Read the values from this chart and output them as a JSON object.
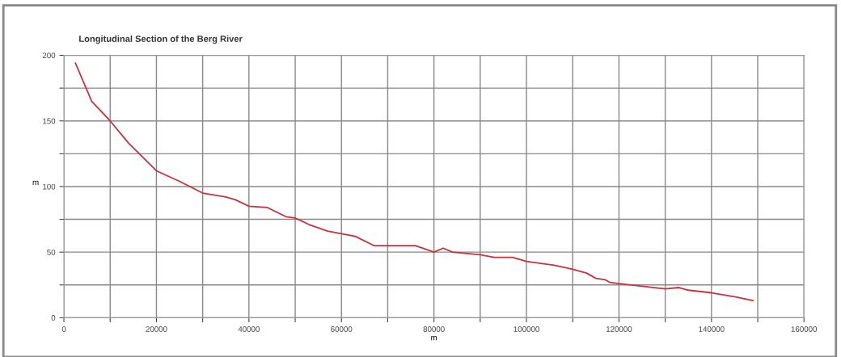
{
  "chart_data": {
    "type": "line",
    "title": "Longitudinal Section of the Berg River",
    "xlabel": "m",
    "ylabel": "m",
    "x": [
      2500,
      6000,
      10000,
      14000,
      20000,
      25000,
      30000,
      35000,
      37000,
      40000,
      44000,
      48000,
      50000,
      53000,
      57000,
      60000,
      63000,
      67000,
      70000,
      76000,
      80000,
      82000,
      84000,
      90000,
      93000,
      97000,
      100000,
      106000,
      110000,
      113000,
      115000,
      117000,
      118000,
      120000,
      125000,
      130000,
      133000,
      135000,
      140000,
      145000,
      149000
    ],
    "series": [
      {
        "color": "#c8323c",
        "values": [
          194,
          165,
          150,
          133,
          112,
          104,
          95,
          92,
          90,
          85,
          84,
          77,
          76,
          71,
          66,
          64,
          62,
          55,
          55,
          55,
          50,
          53,
          50,
          48,
          46,
          46,
          43,
          40,
          37,
          34,
          30,
          29,
          27,
          26,
          24,
          22,
          23,
          21,
          19,
          16,
          13
        ]
      }
    ],
    "xlim": [
      0,
      160000
    ],
    "ylim": [
      0,
      200
    ],
    "xticks": [
      0,
      {
        "value": 10000,
        "label": null
      },
      20000,
      {
        "value": 30000,
        "label": null
      },
      40000,
      {
        "value": 50000,
        "label": null
      },
      60000,
      {
        "value": 70000,
        "label": null
      },
      80000,
      {
        "value": 90000,
        "label": null
      },
      100000,
      {
        "value": 110000,
        "label": null
      },
      120000,
      {
        "value": 130000,
        "label": null
      },
      140000,
      {
        "value": 150000,
        "label": null
      },
      160000
    ],
    "yticks": [
      0,
      {
        "value": 25,
        "label": null
      },
      50,
      {
        "value": 75,
        "label": null
      },
      100,
      {
        "value": 125,
        "label": null
      },
      150,
      {
        "value": 175,
        "label": null
      },
      200
    ],
    "grid": true,
    "marker": "none",
    "line_style": "solid"
  }
}
